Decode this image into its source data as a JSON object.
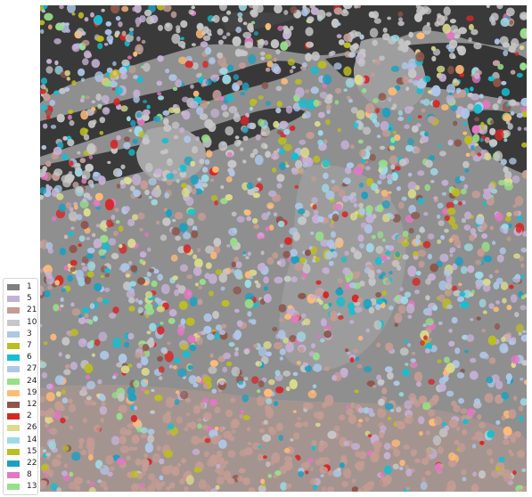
{
  "legend": {
    "items": [
      {
        "label": "1",
        "color": "#7f7f7f"
      },
      {
        "label": "5",
        "color": "#c5b0d5"
      },
      {
        "label": "21",
        "color": "#c49c94"
      },
      {
        "label": "10",
        "color": "#c7c7c7"
      },
      {
        "label": "3",
        "color": "#aec7e8"
      },
      {
        "label": "7",
        "color": "#bcbd22"
      },
      {
        "label": "6",
        "color": "#17becf"
      },
      {
        "label": "27",
        "color": "#aec7e8"
      },
      {
        "label": "24",
        "color": "#98df8a"
      },
      {
        "label": "19",
        "color": "#ffbb78"
      },
      {
        "label": "12",
        "color": "#8c564b"
      },
      {
        "label": "2",
        "color": "#d62728"
      },
      {
        "label": "26",
        "color": "#dbdb8d"
      },
      {
        "label": "14",
        "color": "#9edae5"
      },
      {
        "label": "15",
        "color": "#bcbd22"
      },
      {
        "label": "22",
        "color": "#1f9fbf"
      },
      {
        "label": "8",
        "color": "#e377c2"
      },
      {
        "label": "13",
        "color": "#98df8a"
      }
    ]
  },
  "image": {
    "background_color": "#8f8f8f",
    "dark_region_color": "#333333"
  }
}
